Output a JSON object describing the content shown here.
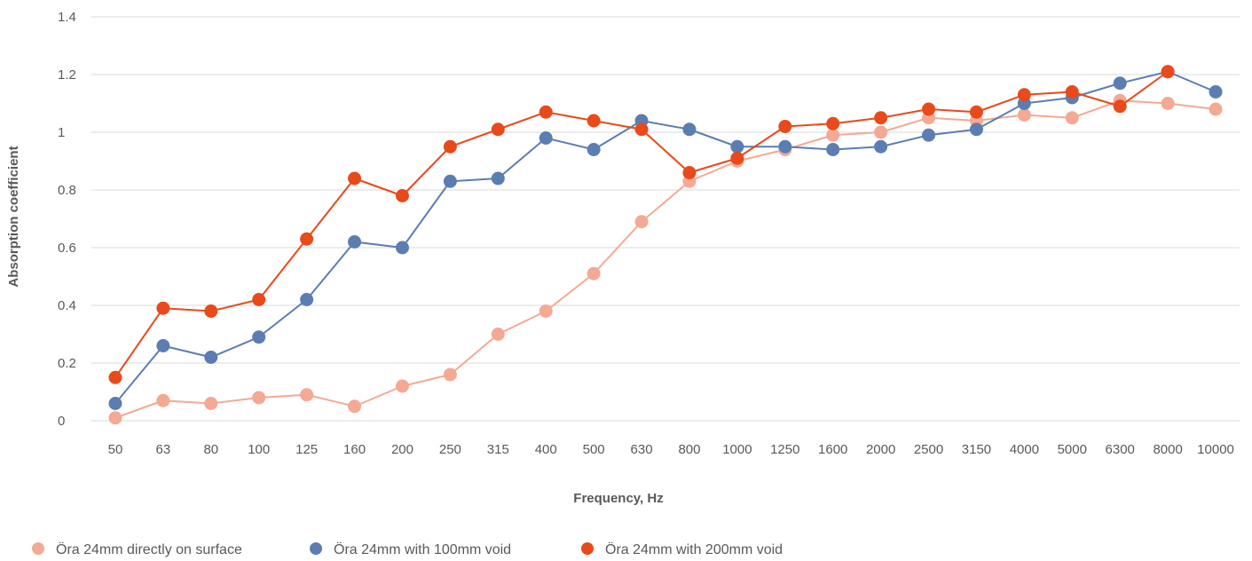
{
  "chart_data": {
    "type": "line",
    "title": "",
    "xlabel": "Frequency, Hz",
    "ylabel": "Absorption coefficient",
    "ylim": [
      0,
      1.4
    ],
    "yticks": [
      "0",
      "0.2",
      "0.4",
      "0.6",
      "0.8",
      "1",
      "1.2",
      "1.4"
    ],
    "grid": true,
    "legend_position": "bottom-left",
    "categories": [
      "50",
      "63",
      "80",
      "100",
      "125",
      "160",
      "200",
      "250",
      "315",
      "400",
      "500",
      "630",
      "800",
      "1000",
      "1250",
      "1600",
      "2000",
      "2500",
      "3150",
      "4000",
      "5000",
      "6300",
      "8000",
      "10000"
    ],
    "series": [
      {
        "name": "Öra 24mm directly on surface",
        "color": "#F4A994",
        "values": [
          0.01,
          0.07,
          0.06,
          0.08,
          0.09,
          0.05,
          0.12,
          0.16,
          0.3,
          0.38,
          0.51,
          0.69,
          0.83,
          0.9,
          0.94,
          0.99,
          1.0,
          1.05,
          1.04,
          1.06,
          1.05,
          1.11,
          1.1,
          1.08
        ]
      },
      {
        "name": "Öra 24mm with 100mm void",
        "color": "#5B7DB1",
        "values": [
          0.06,
          0.26,
          0.22,
          0.29,
          0.42,
          0.62,
          0.6,
          0.83,
          0.84,
          0.98,
          0.94,
          1.04,
          1.01,
          0.95,
          0.95,
          0.94,
          0.95,
          0.99,
          1.01,
          1.1,
          1.12,
          1.17,
          1.21,
          1.14
        ]
      },
      {
        "name": "Öra 24mm with 200mm void",
        "color": "#E84A1B",
        "values": [
          0.15,
          0.39,
          0.38,
          0.42,
          0.63,
          0.84,
          0.78,
          0.95,
          1.01,
          1.07,
          1.04,
          1.01,
          0.86,
          0.91,
          1.02,
          1.03,
          1.05,
          1.08,
          1.07,
          1.13,
          1.14,
          1.09,
          1.21,
          null
        ]
      }
    ]
  }
}
